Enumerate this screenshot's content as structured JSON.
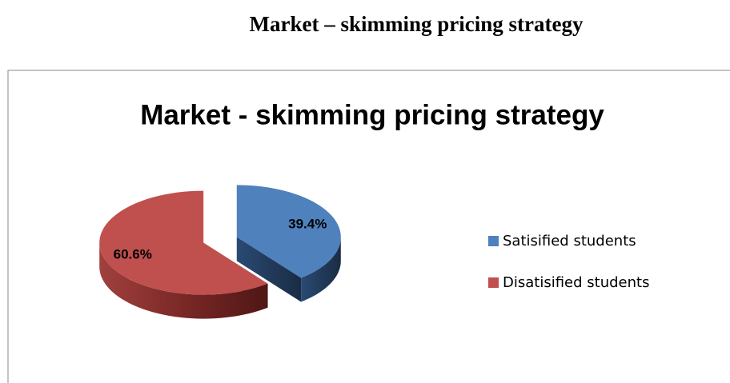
{
  "heading": "Market – skimming pricing strategy",
  "chart_data": {
    "type": "pie",
    "title": "Market - skimming pricing strategy",
    "categories": [
      "Satisified students",
      "Disatisified students"
    ],
    "values": [
      39.4,
      60.6
    ],
    "value_labels": [
      "39.4%",
      "60.6%"
    ],
    "colors": [
      "#4f81bd",
      "#c0504d"
    ],
    "legend": "right"
  }
}
